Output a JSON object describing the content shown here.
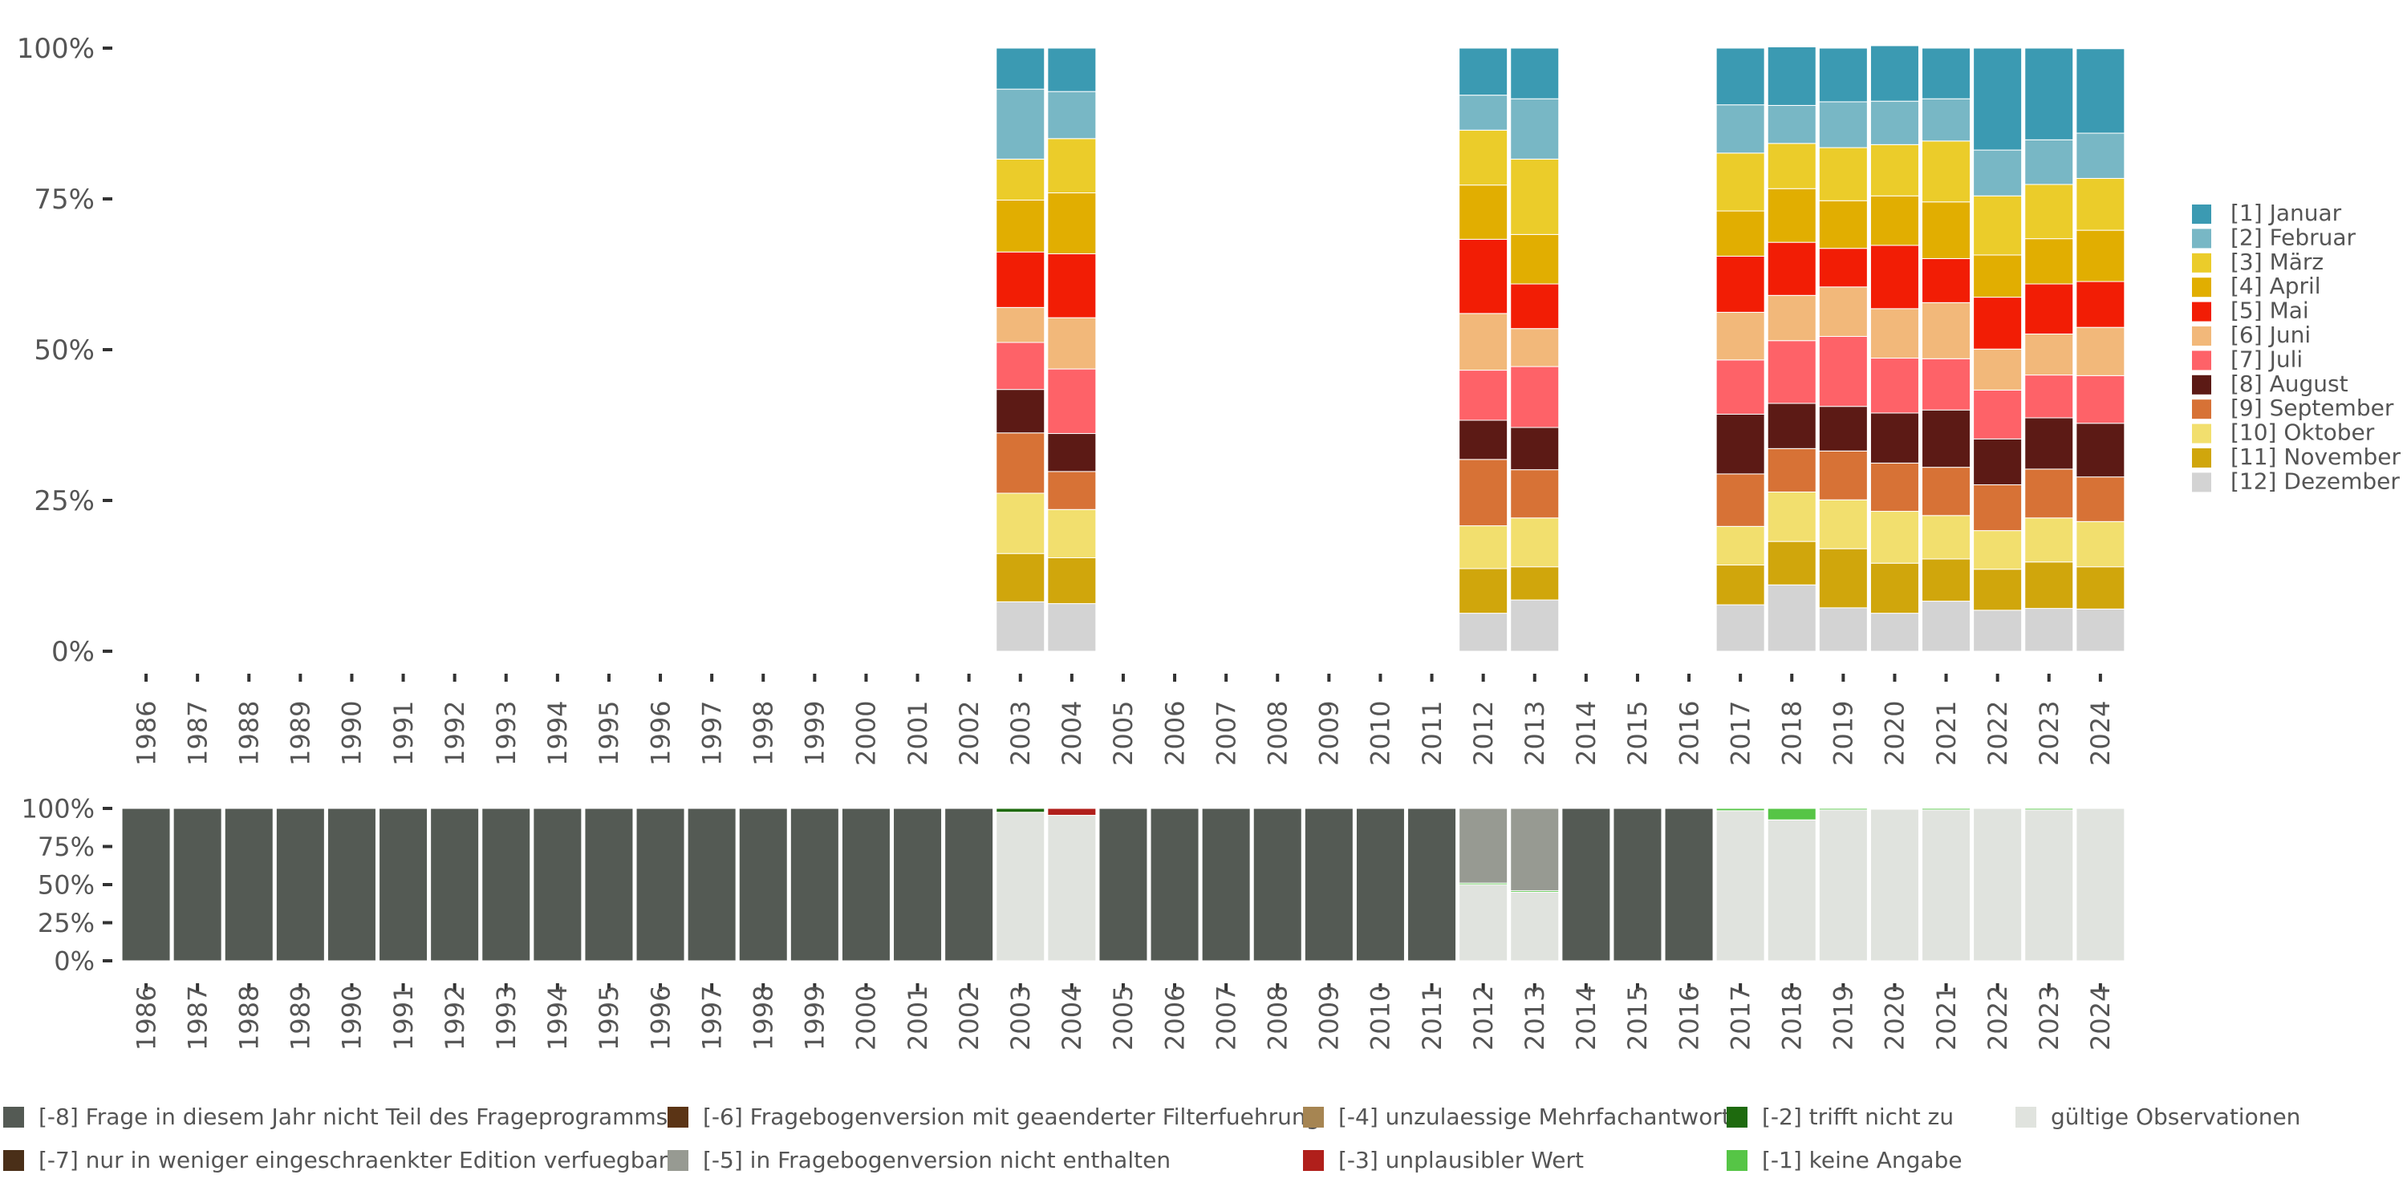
{
  "chart_data": [
    {
      "type": "bar",
      "stacked": true,
      "normalized": true,
      "yticks": [
        "0%",
        "25%",
        "50%",
        "75%",
        "100%"
      ],
      "ylim": [
        0,
        100
      ],
      "categories": [
        "1986",
        "1987",
        "1988",
        "1989",
        "1990",
        "1991",
        "1992",
        "1993",
        "1994",
        "1995",
        "1996",
        "1997",
        "1998",
        "1999",
        "2000",
        "2001",
        "2002",
        "2003",
        "2004",
        "2005",
        "2006",
        "2007",
        "2008",
        "2009",
        "2010",
        "2011",
        "2012",
        "2013",
        "2014",
        "2015",
        "2016",
        "2017",
        "2018",
        "2019",
        "2020",
        "2021",
        "2022",
        "2023",
        "2024"
      ],
      "legend": "right",
      "series": [
        {
          "name": "[12] Dezember",
          "color": "#d3d3d3",
          "values": {
            "2003": 8.2,
            "2004": 7.9,
            "2012": 6.3,
            "2013": 8.5,
            "2017": 7.7,
            "2018": 11.0,
            "2019": 7.2,
            "2020": 6.3,
            "2021": 8.3,
            "2022": 6.8,
            "2023": 7.1,
            "2024": 7.0
          }
        },
        {
          "name": "[11] November",
          "color": "#d0a60c",
          "values": {
            "2003": 8.0,
            "2004": 7.6,
            "2012": 7.4,
            "2013": 5.5,
            "2017": 6.6,
            "2018": 7.2,
            "2019": 9.8,
            "2020": 8.3,
            "2021": 7.0,
            "2022": 6.8,
            "2023": 7.7,
            "2024": 7.0
          }
        },
        {
          "name": "[10] Oktober",
          "color": "#f2df6e",
          "values": {
            "2003": 10.0,
            "2004": 8.0,
            "2012": 7.1,
            "2013": 8.1,
            "2017": 6.4,
            "2018": 8.2,
            "2019": 8.1,
            "2020": 8.6,
            "2021": 7.2,
            "2022": 6.4,
            "2023": 7.3,
            "2024": 7.5
          }
        },
        {
          "name": "[9] September",
          "color": "#d77236",
          "values": {
            "2003": 10.0,
            "2004": 6.3,
            "2012": 11.0,
            "2013": 8.0,
            "2017": 8.7,
            "2018": 7.2,
            "2019": 8.1,
            "2020": 8.0,
            "2021": 8.0,
            "2022": 7.6,
            "2023": 8.1,
            "2024": 7.4
          }
        },
        {
          "name": "[8] August",
          "color": "#5c1a15",
          "values": {
            "2003": 7.2,
            "2004": 6.3,
            "2012": 6.5,
            "2013": 7.0,
            "2017": 9.9,
            "2018": 7.5,
            "2019": 7.4,
            "2020": 8.3,
            "2021": 9.5,
            "2022": 7.6,
            "2023": 8.5,
            "2024": 8.9
          }
        },
        {
          "name": "[7] Juli",
          "color": "#fe6268",
          "values": {
            "2003": 7.8,
            "2004": 10.7,
            "2012": 8.3,
            "2013": 10.1,
            "2017": 9.0,
            "2018": 10.4,
            "2019": 11.6,
            "2020": 9.1,
            "2021": 8.5,
            "2022": 8.1,
            "2023": 7.1,
            "2024": 7.9
          }
        },
        {
          "name": "[6] Juni",
          "color": "#f2b87a",
          "values": {
            "2003": 5.8,
            "2004": 8.5,
            "2012": 9.4,
            "2013": 6.3,
            "2017": 7.9,
            "2018": 7.5,
            "2019": 8.2,
            "2020": 8.2,
            "2021": 9.3,
            "2022": 6.8,
            "2023": 6.8,
            "2024": 8.0
          }
        },
        {
          "name": "[5] Mai",
          "color": "#f21d05",
          "values": {
            "2003": 9.2,
            "2004": 10.6,
            "2012": 12.3,
            "2013": 7.4,
            "2017": 9.3,
            "2018": 8.8,
            "2019": 6.4,
            "2020": 10.5,
            "2021": 7.3,
            "2022": 8.6,
            "2023": 8.3,
            "2024": 7.6
          }
        },
        {
          "name": "[4] April",
          "color": "#e1ae01",
          "values": {
            "2003": 8.6,
            "2004": 10.1,
            "2012": 9.0,
            "2013": 8.2,
            "2017": 7.5,
            "2018": 8.9,
            "2019": 7.9,
            "2020": 8.2,
            "2021": 9.4,
            "2022": 7.0,
            "2023": 7.5,
            "2024": 8.5
          }
        },
        {
          "name": "[3] März",
          "color": "#ebcc2a",
          "values": {
            "2003": 6.8,
            "2004": 9.0,
            "2012": 9.1,
            "2013": 12.5,
            "2017": 9.6,
            "2018": 7.5,
            "2019": 8.8,
            "2020": 8.5,
            "2021": 10.1,
            "2022": 9.8,
            "2023": 9.0,
            "2024": 8.6
          }
        },
        {
          "name": "[2] Februar",
          "color": "#78b7c5",
          "values": {
            "2003": 11.6,
            "2004": 7.8,
            "2012": 5.8,
            "2013": 10.0,
            "2017": 8.0,
            "2018": 6.3,
            "2019": 7.6,
            "2020": 7.2,
            "2021": 7.0,
            "2022": 7.6,
            "2023": 7.4,
            "2024": 7.5
          }
        },
        {
          "name": "[1] Januar",
          "color": "#3b9ab2",
          "values": {
            "2003": 6.8,
            "2004": 7.2,
            "2012": 7.8,
            "2013": 8.4,
            "2017": 9.4,
            "2018": 9.7,
            "2019": 8.9,
            "2020": 9.2,
            "2021": 8.4,
            "2022": 16.9,
            "2023": 15.2,
            "2024": 14.0
          }
        }
      ]
    },
    {
      "type": "bar",
      "stacked": true,
      "normalized": true,
      "yticks": [
        "0%",
        "25%",
        "50%",
        "75%",
        "100%"
      ],
      "ylim": [
        0,
        100
      ],
      "categories": [
        "1986",
        "1987",
        "1988",
        "1989",
        "1990",
        "1991",
        "1992",
        "1993",
        "1994",
        "1995",
        "1996",
        "1997",
        "1998",
        "1999",
        "2000",
        "2001",
        "2002",
        "2003",
        "2004",
        "2005",
        "2006",
        "2007",
        "2008",
        "2009",
        "2010",
        "2011",
        "2012",
        "2013",
        "2014",
        "2015",
        "2016",
        "2017",
        "2018",
        "2019",
        "2020",
        "2021",
        "2022",
        "2023",
        "2024"
      ],
      "legend": "bottom",
      "series": [
        {
          "name": "gültige Observationen",
          "color": "#e0e3de",
          "values": {
            "2003": 97.5,
            "2004": 95.5,
            "2012": 50.0,
            "2013": 45.0,
            "2017": 98.5,
            "2018": 92.5,
            "2019": 99.0,
            "2020": 99.5,
            "2021": 99.0,
            "2022": 100,
            "2023": 99.0,
            "2024": 100
          }
        },
        {
          "name": "[-1] keine Angabe",
          "color": "#56c546",
          "values": {
            "2012": 1.0,
            "2013": 1.0,
            "2017": 1.5,
            "2018": 7.5,
            "2019": 1.0,
            "2020": 0.5,
            "2021": 1.0,
            "2023": 1.0
          }
        },
        {
          "name": "[-2] trifft nicht zu",
          "color": "#1e6a0e",
          "values": {
            "2003": 2.5
          }
        },
        {
          "name": "[-3] unplausibler Wert",
          "color": "#b01f1b",
          "values": {
            "2004": 4.5
          }
        },
        {
          "name": "[-4] unzulaessige Mehrfachantwort",
          "color": "#a68552",
          "values": {}
        },
        {
          "name": "[-5] in Fragebogenversion nicht enthalten",
          "color": "#979a92",
          "values": {
            "2012": 49.0,
            "2013": 54.0
          }
        },
        {
          "name": "[-6] Fragebogenversion mit geaenderter Filterfuehrung",
          "color": "#5b3415",
          "values": {}
        },
        {
          "name": "[-7] nur in weniger eingeschraenkter Edition verfuegbar",
          "color": "#4a2f18",
          "values": {}
        },
        {
          "name": "[-8] Frage in diesem Jahr nicht Teil des Frageprogramms",
          "color": "#545a54",
          "values": {
            "1986": 100,
            "1987": 100,
            "1988": 100,
            "1989": 100,
            "1990": 100,
            "1991": 100,
            "1992": 100,
            "1993": 100,
            "1994": 100,
            "1995": 100,
            "1996": 100,
            "1997": 100,
            "1998": 100,
            "1999": 100,
            "2000": 100,
            "2001": 100,
            "2002": 100,
            "2005": 100,
            "2006": 100,
            "2007": 100,
            "2008": 100,
            "2009": 100,
            "2010": 100,
            "2011": 100,
            "2014": 100,
            "2015": 100,
            "2016": 100
          }
        }
      ],
      "legend_order": [
        "[-8] Frage in diesem Jahr nicht Teil des Frageprogramms",
        "[-6] Fragebogenversion mit geaenderter Filterfuehrung",
        "[-4] unzulaessige Mehrfachantwort",
        "[-2] trifft nicht zu",
        "gültige Observationen",
        "[-7] nur in weniger eingeschraenkter Edition verfuegbar",
        "[-5] in Fragebogenversion nicht enthalten",
        "[-3] unplausibler Wert",
        "[-1] keine Angabe"
      ]
    }
  ]
}
